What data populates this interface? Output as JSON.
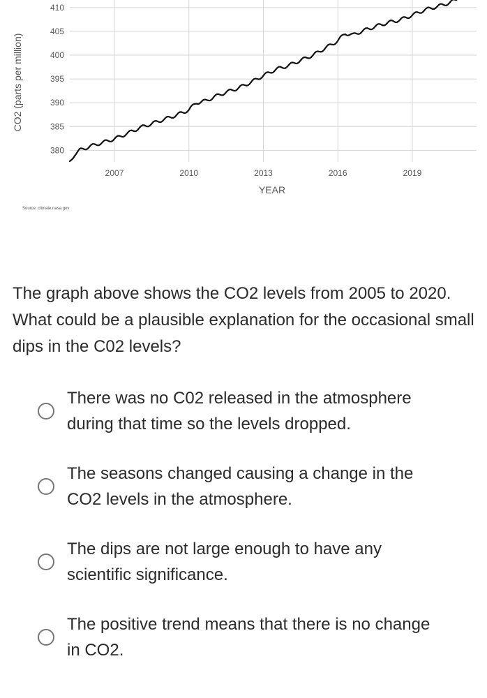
{
  "chart_data": {
    "type": "line",
    "title": "",
    "xlabel": "YEAR",
    "ylabel": "CO2 (parts per million)",
    "source": "Source: climate.nasa.gov",
    "xlim": [
      2005.2,
      2020.8
    ],
    "ylim": [
      378,
      411
    ],
    "x_ticks": [
      2007,
      2010,
      2013,
      2016,
      2019
    ],
    "y_ticks": [
      380,
      385,
      390,
      395,
      400,
      405,
      410
    ],
    "grid": true,
    "series": [
      {
        "name": "CO2",
        "x": [
          2005.2,
          2005.4,
          2005.6,
          2006.0,
          2006.5,
          2007.0,
          2007.5,
          2008.0,
          2008.5,
          2009.0,
          2009.5,
          2010.0,
          2010.3,
          2010.7,
          2011.0,
          2011.5,
          2012.0,
          2012.5,
          2013.0,
          2013.5,
          2014.0,
          2014.5,
          2015.0,
          2015.5,
          2016.0,
          2016.3,
          2016.6,
          2017.0,
          2017.5,
          2018.0,
          2018.5,
          2019.0,
          2019.5,
          2020.0,
          2020.5,
          2020.8
        ],
        "y": [
          377.5,
          379.2,
          380.0,
          380.8,
          381.6,
          382.4,
          383.5,
          384.7,
          385.6,
          386.5,
          387.4,
          388.5,
          390.0,
          390.4,
          391.2,
          392.2,
          393.1,
          394.3,
          395.7,
          397.0,
          397.8,
          398.9,
          400.0,
          401.5,
          403.0,
          404.6,
          404.2,
          405.1,
          406.0,
          406.8,
          407.4,
          408.4,
          409.5,
          410.2,
          411.0,
          411.7
        ]
      }
    ]
  },
  "question": {
    "text": "The graph above shows the CO2 levels from 2005 to 2020. What could be a plausible explanation for the occasional small dips in the C02 levels?"
  },
  "options": [
    {
      "text": "There was no C02 released in the atmosphere during that time so the levels dropped."
    },
    {
      "text": "The seasons changed causing a change in the CO2 levels in the atmosphere."
    },
    {
      "text": "The dips are not large enough to have any scientific significance."
    },
    {
      "text": "The positive trend means that there is no change in CO2."
    }
  ]
}
